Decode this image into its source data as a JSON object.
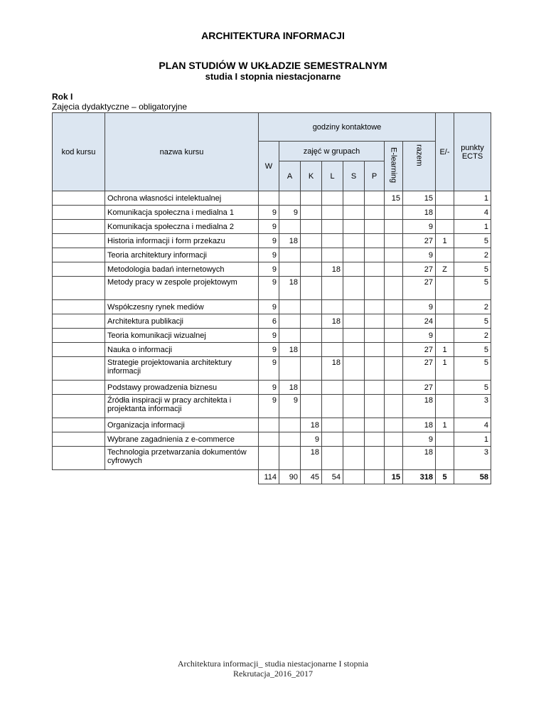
{
  "title": "ARCHITEKTURA INFORMACJI",
  "subtitle": "PLAN STUDIÓW W UKŁADZIE SEMESTRALNYM",
  "subtitle2": "studia I stopnia niestacjonarne",
  "year": "Rok I",
  "section": "Zajęcia dydaktyczne – obligatoryjne",
  "headers": {
    "kod": "kod kursu",
    "nazwa": "nazwa kursu",
    "godziny": "godziny kontaktowe",
    "grupy": "zajęć w grupach",
    "W": "W",
    "A": "A",
    "K": "K",
    "L": "L",
    "S": "S",
    "P": "P",
    "elearning": "E-learning",
    "razem": "razem",
    "e": "E/-",
    "ects": "punkty ECTS"
  },
  "rows": [
    {
      "name": "Ochrona własności intelektualnej",
      "W": "",
      "A": "",
      "K": "",
      "L": "",
      "S": "",
      "P": "",
      "EL": "15",
      "razem": "15",
      "E": "",
      "ects": "1"
    },
    {
      "name": "Komunikacja społeczna i medialna 1",
      "W": "9",
      "A": "9",
      "K": "",
      "L": "",
      "S": "",
      "P": "",
      "EL": "",
      "razem": "18",
      "E": "",
      "ects": "4"
    },
    {
      "name": "Komunikacja społeczna i medialna 2",
      "W": "9",
      "A": "",
      "K": "",
      "L": "",
      "S": "",
      "P": "",
      "EL": "",
      "razem": "9",
      "E": "",
      "ects": "1"
    },
    {
      "name": "Historia informacji i form przekazu",
      "W": "9",
      "A": "18",
      "K": "",
      "L": "",
      "S": "",
      "P": "",
      "EL": "",
      "razem": "27",
      "E": "1",
      "ects": "5"
    },
    {
      "name": "Teoria architektury informacji",
      "W": "9",
      "A": "",
      "K": "",
      "L": "",
      "S": "",
      "P": "",
      "EL": "",
      "razem": "9",
      "E": "",
      "ects": "2"
    },
    {
      "name": "Metodologia badań internetowych",
      "W": "9",
      "A": "",
      "K": "",
      "L": "18",
      "S": "",
      "P": "",
      "EL": "",
      "razem": "27",
      "E": "Z",
      "ects": "5"
    },
    {
      "name": "Metody pracy w zespole projektowym",
      "W": "9",
      "A": "18",
      "K": "",
      "L": "",
      "S": "",
      "P": "",
      "EL": "",
      "razem": "27",
      "E": "",
      "ects": "5",
      "tall": true
    },
    {
      "name": "Współczesny rynek mediów",
      "W": "9",
      "A": "",
      "K": "",
      "L": "",
      "S": "",
      "P": "",
      "EL": "",
      "razem": "9",
      "E": "",
      "ects": "2"
    },
    {
      "name": "Architektura publikacji",
      "W": "6",
      "A": "",
      "K": "",
      "L": "18",
      "S": "",
      "P": "",
      "EL": "",
      "razem": "24",
      "E": "",
      "ects": "5"
    },
    {
      "name": "Teoria komunikacji wizualnej",
      "W": "9",
      "A": "",
      "K": "",
      "L": "",
      "S": "",
      "P": "",
      "EL": "",
      "razem": "9",
      "E": "",
      "ects": "2"
    },
    {
      "name": "Nauka o informacji",
      "W": "9",
      "A": "18",
      "K": "",
      "L": "",
      "S": "",
      "P": "",
      "EL": "",
      "razem": "27",
      "E": "1",
      "ects": "5"
    },
    {
      "name": "Strategie projektowania architektury informacji",
      "W": "9",
      "A": "",
      "K": "",
      "L": "18",
      "S": "",
      "P": "",
      "EL": "",
      "razem": "27",
      "E": "1",
      "ects": "5",
      "tall": true
    },
    {
      "name": "Podstawy prowadzenia biznesu",
      "W": "9",
      "A": "18",
      "K": "",
      "L": "",
      "S": "",
      "P": "",
      "EL": "",
      "razem": "27",
      "E": "",
      "ects": "5"
    },
    {
      "name": "Źródła inspiracji w pracy architekta i projektanta informacji",
      "W": "9",
      "A": "9",
      "K": "",
      "L": "",
      "S": "",
      "P": "",
      "EL": "",
      "razem": "18",
      "E": "",
      "ects": "3",
      "tall": true
    },
    {
      "name": "Organizacja informacji",
      "W": "",
      "A": "",
      "K": "18",
      "L": "",
      "S": "",
      "P": "",
      "EL": "",
      "razem": "18",
      "E": "1",
      "ects": "4"
    },
    {
      "name": "Wybrane zagadnienia z e-commerce",
      "W": "",
      "A": "",
      "K": "9",
      "L": "",
      "S": "",
      "P": "",
      "EL": "",
      "razem": "9",
      "E": "",
      "ects": "1"
    },
    {
      "name": "Technologia przetwarzania dokumentów cyfrowych",
      "W": "",
      "A": "",
      "K": "18",
      "L": "",
      "S": "",
      "P": "",
      "EL": "",
      "razem": "18",
      "E": "",
      "ects": "3",
      "tall": true
    }
  ],
  "totals": {
    "W": "114",
    "A": "90",
    "K": "45",
    "L": "54",
    "S": "",
    "P": "",
    "EL": "15",
    "razem": "318",
    "E": "5",
    "ects": "58"
  },
  "footer": {
    "line1": "Architektura informacji_ studia niestacjonarne I stopnia",
    "line2": "Rekrutacja_2016_2017"
  }
}
